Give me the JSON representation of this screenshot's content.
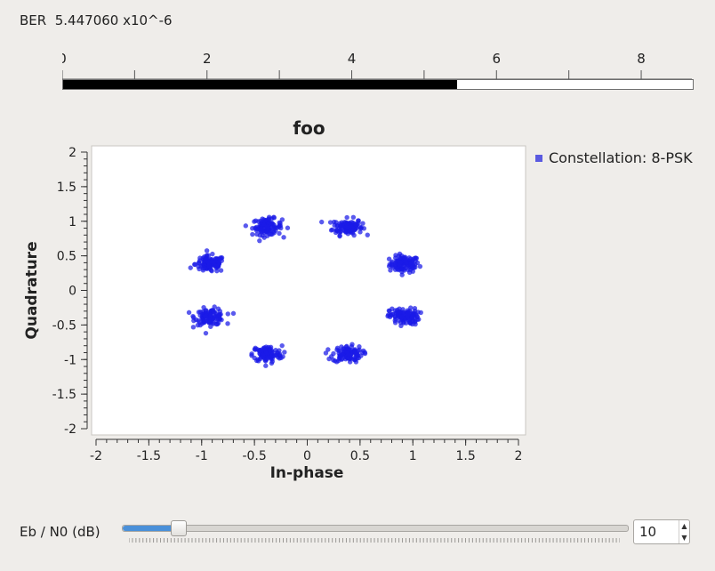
{
  "ber": {
    "label": "BER",
    "value": "5.447060 x10^-6",
    "scale_ticks": [
      "0",
      "2",
      "4",
      "6",
      "8"
    ],
    "scale_max": 8.7,
    "current": 5.447
  },
  "plot": {
    "title": "foo",
    "legend_label": "Constellation: 8-PSK",
    "legend_color": "#5a5ae0",
    "point_color": "#1a1ae8"
  },
  "controls": {
    "ebn0_label": "Eb / N0 (dB)",
    "ebn0_value": "10",
    "slider_fraction": 0.1,
    "spin_up": "▲",
    "spin_down": "▼"
  },
  "chart_data": {
    "type": "scatter",
    "title": "foo",
    "xlabel": "In-phase",
    "ylabel": "Quadrature",
    "xlim": [
      -2,
      2
    ],
    "ylim": [
      -2,
      2
    ],
    "x_ticks": [
      "-2",
      "-1.5",
      "-1",
      "-0.5",
      "0",
      "0.5",
      "1",
      "1.5",
      "2"
    ],
    "y_ticks": [
      "2",
      "1.5",
      "1",
      "0.5",
      "0",
      "-0.5",
      "-1",
      "-1.5",
      "-2"
    ],
    "grid": false,
    "legend": "top-right",
    "series": [
      {
        "name": "Constellation: 8-PSK",
        "clusters": [
          {
            "x": 0.92,
            "y": 0.38
          },
          {
            "x": 0.38,
            "y": 0.92
          },
          {
            "x": -0.38,
            "y": 0.92
          },
          {
            "x": -0.92,
            "y": 0.38
          },
          {
            "x": -0.92,
            "y": -0.38
          },
          {
            "x": -0.38,
            "y": -0.92
          },
          {
            "x": 0.38,
            "y": -0.92
          },
          {
            "x": 0.92,
            "y": -0.38
          }
        ],
        "points_per_cluster": 110,
        "noise_sigma": 0.07
      }
    ]
  }
}
